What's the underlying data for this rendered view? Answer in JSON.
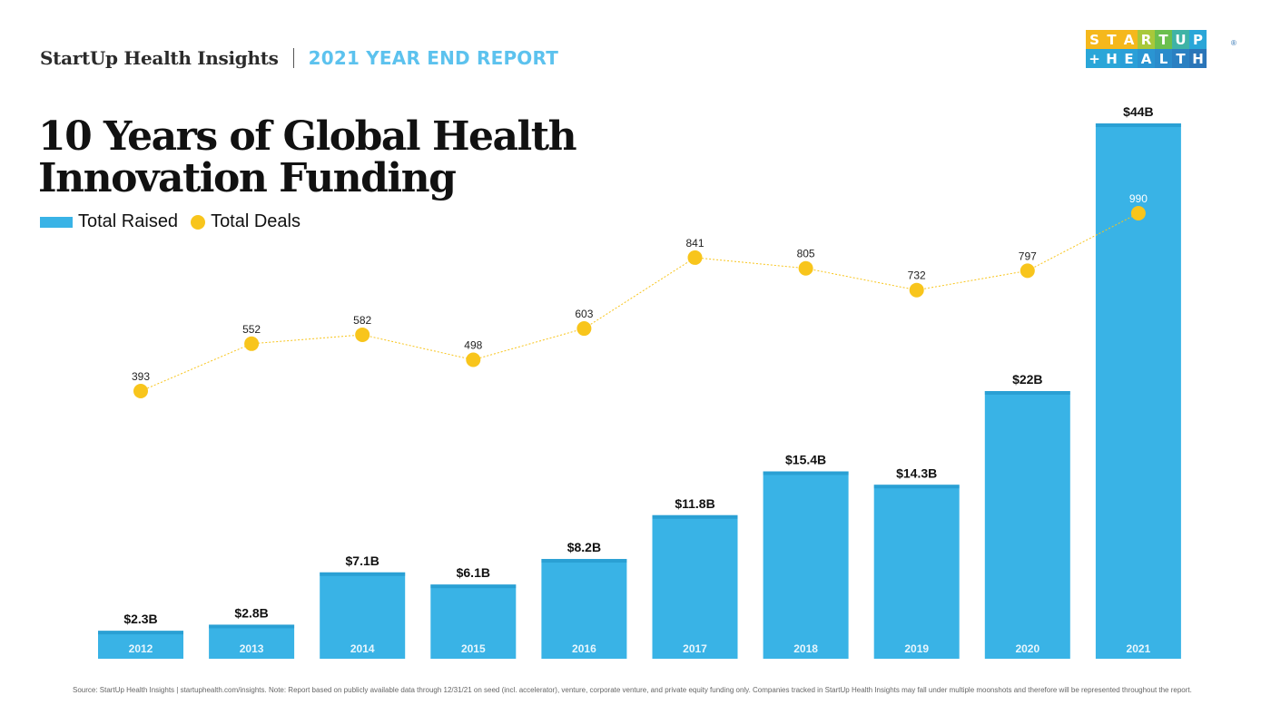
{
  "header": {
    "brand": "StartUp Health Insights",
    "report": "2021 YEAR END REPORT"
  },
  "logo": {
    "row1": [
      "S",
      "T",
      "A",
      "R",
      "T",
      "U",
      "P"
    ],
    "row2": [
      "+",
      "H",
      "E",
      "A",
      "L",
      "T",
      "H"
    ],
    "row1_colors": [
      "#f5b81c",
      "#f5b81c",
      "#f5b81c",
      "#a8c83a",
      "#6bbf4e",
      "#3fb3a6",
      "#2aa6d8"
    ],
    "row2_colors": [
      "#2aa6d8",
      "#2aa6d8",
      "#2a9fd8",
      "#2a95d2",
      "#2a8bcb",
      "#2a80c2",
      "#2a75b8"
    ],
    "registered": "®"
  },
  "title": {
    "line1": "10 Years of Global Health",
    "line2": "Innovation Funding"
  },
  "legend": {
    "raised": "Total Raised",
    "deals": "Total Deals"
  },
  "chart_data": {
    "type": "bar",
    "categories": [
      "2012",
      "2013",
      "2014",
      "2015",
      "2016",
      "2017",
      "2018",
      "2019",
      "2020",
      "2021"
    ],
    "series": [
      {
        "name": "Total Raised",
        "type": "bar",
        "values": [
          2.3,
          2.8,
          7.1,
          6.1,
          8.2,
          11.8,
          15.4,
          14.3,
          22,
          44
        ],
        "labels": [
          "$2.3B",
          "$2.8B",
          "$7.1B",
          "$6.1B",
          "$8.2B",
          "$11.8B",
          "$15.4B",
          "$14.3B",
          "$22B",
          "$44B"
        ],
        "color": "#39b3e6"
      },
      {
        "name": "Total Deals",
        "type": "line",
        "values": [
          393,
          552,
          582,
          498,
          603,
          841,
          805,
          732,
          797,
          990
        ],
        "labels": [
          "393",
          "552",
          "582",
          "498",
          "603",
          "841",
          "805",
          "732",
          "797",
          "990"
        ],
        "color": "#f8c51c"
      }
    ],
    "grid": false,
    "legend": "top-left"
  },
  "footnote": "Source: StartUp Health Insights | startuphealth.com/insights. Note: Report based on publicly available data through 12/31/21 on seed (incl. accelerator), venture, corporate venture, and private equity funding only. Companies tracked in StartUp Health Insights may fall under multiple moonshots and therefore will be represented throughout the report."
}
